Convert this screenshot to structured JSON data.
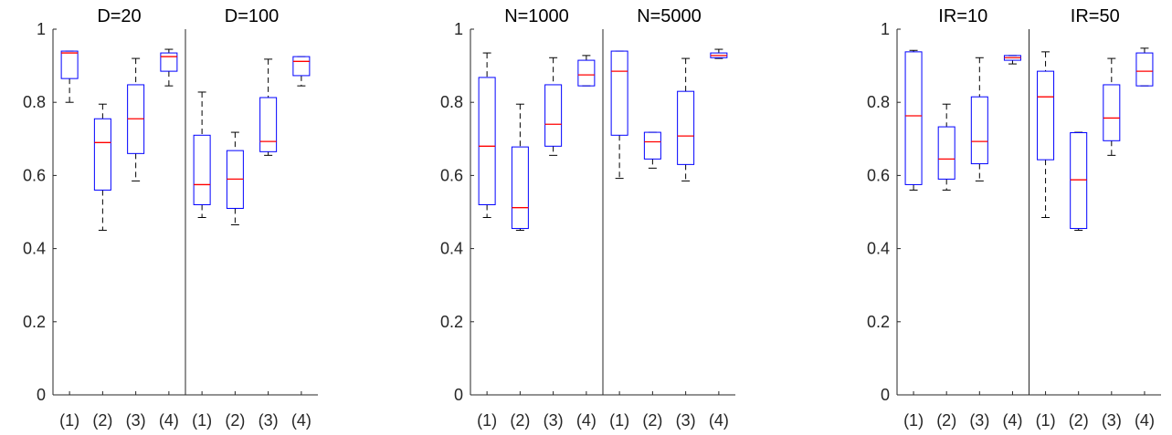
{
  "chart_data": [
    {
      "type": "boxplot",
      "ylim": [
        0,
        1
      ],
      "yticks": [
        0,
        0.2,
        0.4,
        0.6,
        0.8,
        1
      ],
      "ytick_labels": [
        "0",
        "0.2",
        "0.4",
        "0.6",
        "0.8",
        "1"
      ],
      "categories": [
        "(1)",
        "(2)",
        "(3)",
        "(4)"
      ],
      "panels": [
        {
          "title": "D=20",
          "boxes": [
            {
              "category": "(1)",
              "whisker_low": 0.8,
              "q1": 0.865,
              "median": 0.935,
              "q3": 0.94,
              "whisker_high": 0.94
            },
            {
              "category": "(2)",
              "whisker_low": 0.45,
              "q1": 0.56,
              "median": 0.69,
              "q3": 0.755,
              "whisker_high": 0.795
            },
            {
              "category": "(3)",
              "whisker_low": 0.585,
              "q1": 0.66,
              "median": 0.755,
              "q3": 0.848,
              "whisker_high": 0.92
            },
            {
              "category": "(4)",
              "whisker_low": 0.845,
              "q1": 0.885,
              "median": 0.925,
              "q3": 0.935,
              "whisker_high": 0.945
            }
          ]
        },
        {
          "title": "D=100",
          "boxes": [
            {
              "category": "(1)",
              "whisker_low": 0.485,
              "q1": 0.52,
              "median": 0.575,
              "q3": 0.71,
              "whisker_high": 0.828
            },
            {
              "category": "(2)",
              "whisker_low": 0.465,
              "q1": 0.51,
              "median": 0.59,
              "q3": 0.668,
              "whisker_high": 0.718
            },
            {
              "category": "(3)",
              "whisker_low": 0.655,
              "q1": 0.665,
              "median": 0.693,
              "q3": 0.813,
              "whisker_high": 0.918
            },
            {
              "category": "(4)",
              "whisker_low": 0.845,
              "q1": 0.873,
              "median": 0.912,
              "q3": 0.925,
              "whisker_high": 0.925
            }
          ]
        },
        {
          "title": "N=1000",
          "boxes": [
            {
              "category": "(1)",
              "whisker_low": 0.485,
              "q1": 0.52,
              "median": 0.68,
              "q3": 0.868,
              "whisker_high": 0.935
            },
            {
              "category": "(2)",
              "whisker_low": 0.45,
              "q1": 0.455,
              "median": 0.512,
              "q3": 0.678,
              "whisker_high": 0.795
            },
            {
              "category": "(3)",
              "whisker_low": 0.655,
              "q1": 0.68,
              "median": 0.74,
              "q3": 0.848,
              "whisker_high": 0.922
            },
            {
              "category": "(4)",
              "whisker_low": 0.845,
              "q1": 0.845,
              "median": 0.875,
              "q3": 0.915,
              "whisker_high": 0.928
            }
          ]
        },
        {
          "title": "N=5000",
          "boxes": [
            {
              "category": "(1)",
              "whisker_low": 0.592,
              "q1": 0.71,
              "median": 0.885,
              "q3": 0.94,
              "whisker_high": 0.94
            },
            {
              "category": "(2)",
              "whisker_low": 0.62,
              "q1": 0.645,
              "median": 0.692,
              "q3": 0.718,
              "whisker_high": 0.718
            },
            {
              "category": "(3)",
              "whisker_low": 0.585,
              "q1": 0.63,
              "median": 0.708,
              "q3": 0.83,
              "whisker_high": 0.92
            },
            {
              "category": "(4)",
              "whisker_low": 0.92,
              "q1": 0.922,
              "median": 0.928,
              "q3": 0.935,
              "whisker_high": 0.945
            }
          ]
        },
        {
          "title": "IR=10",
          "boxes": [
            {
              "category": "(1)",
              "whisker_low": 0.56,
              "q1": 0.575,
              "median": 0.763,
              "q3": 0.938,
              "whisker_high": 0.942
            },
            {
              "category": "(2)",
              "whisker_low": 0.56,
              "q1": 0.59,
              "median": 0.645,
              "q3": 0.733,
              "whisker_high": 0.795
            },
            {
              "category": "(3)",
              "whisker_low": 0.585,
              "q1": 0.632,
              "median": 0.693,
              "q3": 0.815,
              "whisker_high": 0.922
            },
            {
              "category": "(4)",
              "whisker_low": 0.905,
              "q1": 0.915,
              "median": 0.922,
              "q3": 0.928,
              "whisker_high": 0.928
            }
          ]
        },
        {
          "title": "IR=50",
          "boxes": [
            {
              "category": "(1)",
              "whisker_low": 0.485,
              "q1": 0.643,
              "median": 0.815,
              "q3": 0.885,
              "whisker_high": 0.938
            },
            {
              "category": "(2)",
              "whisker_low": 0.45,
              "q1": 0.455,
              "median": 0.588,
              "q3": 0.717,
              "whisker_high": 0.718
            },
            {
              "category": "(3)",
              "whisker_low": 0.655,
              "q1": 0.695,
              "median": 0.757,
              "q3": 0.848,
              "whisker_high": 0.92
            },
            {
              "category": "(4)",
              "whisker_low": 0.845,
              "q1": 0.845,
              "median": 0.885,
              "q3": 0.935,
              "whisker_high": 0.948
            }
          ]
        }
      ],
      "colors": {
        "box": "#0000ff",
        "median": "#ff0000",
        "whisker": "#000000",
        "axis": "#262626",
        "text": "#262626"
      }
    }
  ]
}
